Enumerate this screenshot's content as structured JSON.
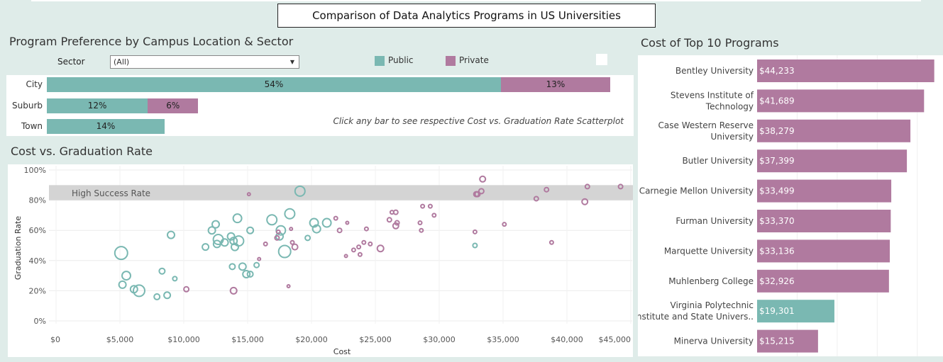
{
  "dashboard_title": "Comparison of Data Analytics Programs in US Universities",
  "preference": {
    "title": "Program Preference by Campus Location & Sector",
    "sector_label": "Sector",
    "sector_value": "(All)",
    "legend_public": "Public",
    "legend_private": "Private",
    "note": "Click any bar to see respective Cost vs. Graduation Rate Scatterplot"
  },
  "scatter": {
    "title": "Cost vs. Graduation Rate",
    "band_label": "High Success Rate"
  },
  "cost_top": {
    "title": "Cost of Top 10 Programs"
  },
  "colors": {
    "public": "#7ab8b2",
    "private": "#b07a9f",
    "band": "#d4d4d4",
    "background": "#dfece9"
  },
  "chart_data": [
    {
      "type": "bar",
      "orientation": "horizontal",
      "stacked": true,
      "categories": [
        "City",
        "Suburb",
        "Town"
      ],
      "series": [
        {
          "name": "Public",
          "values": [
            54,
            12,
            14
          ],
          "labels": [
            "54%",
            "12%",
            "14%"
          ]
        },
        {
          "name": "Private",
          "values": [
            13,
            6,
            0
          ],
          "labels": [
            "13%",
            "6%",
            ""
          ]
        }
      ],
      "unit": "%"
    },
    {
      "type": "scatter",
      "title": "Cost vs. Graduation Rate",
      "xlabel": "Cost",
      "ylabel": "Graduation Rate",
      "xlim": [
        0,
        45000
      ],
      "ylim": [
        0,
        100
      ],
      "x_ticks": [
        "$0",
        "$5,000",
        "$10,000",
        "$15,000",
        "$20,000",
        "$25,000",
        "$30,000",
        "$35,000",
        "$40,000",
        "$45,000"
      ],
      "y_ticks": [
        "0%",
        "20%",
        "40%",
        "60%",
        "80%",
        "100%"
      ],
      "reference_band": {
        "from": 80,
        "to": 90,
        "label": "High Success Rate"
      },
      "series": [
        {
          "name": "Public",
          "points": [
            [
              5100,
              45,
              9
            ],
            [
              5200,
              24,
              5
            ],
            [
              5500,
              30,
              6
            ],
            [
              6100,
              21,
              5
            ],
            [
              6500,
              20,
              8
            ],
            [
              7900,
              16,
              4
            ],
            [
              8300,
              33,
              4
            ],
            [
              8700,
              17,
              4.5
            ],
            [
              9000,
              57,
              5
            ],
            [
              9300,
              28,
              3
            ],
            [
              11700,
              49,
              4.5
            ],
            [
              12200,
              60,
              5
            ],
            [
              12500,
              64,
              5
            ],
            [
              12600,
              51,
              5
            ],
            [
              12700,
              54,
              7
            ],
            [
              13200,
              52,
              5
            ],
            [
              13700,
              56,
              5
            ],
            [
              13800,
              36,
              4
            ],
            [
              13900,
              53,
              5
            ],
            [
              14000,
              49,
              5
            ],
            [
              14200,
              68,
              6
            ],
            [
              14300,
              53,
              7
            ],
            [
              14600,
              36,
              5
            ],
            [
              14900,
              31,
              5
            ],
            [
              15200,
              60,
              4.5
            ],
            [
              15200,
              31,
              4
            ],
            [
              15700,
              37,
              3.5
            ],
            [
              16900,
              67,
              7
            ],
            [
              17500,
              56,
              5
            ],
            [
              17600,
              60,
              6.5
            ],
            [
              17900,
              46,
              8.5
            ],
            [
              18300,
              71,
              7
            ],
            [
              19100,
              86,
              7
            ],
            [
              19700,
              55,
              3.5
            ],
            [
              20200,
              65,
              6
            ],
            [
              20400,
              61,
              5.5
            ],
            [
              21200,
              65,
              6
            ],
            [
              32800,
              50,
              3
            ]
          ]
        },
        {
          "name": "Private",
          "points": [
            [
              10200,
              21,
              3.5
            ],
            [
              13900,
              20,
              4.5
            ],
            [
              15100,
              84,
              2
            ],
            [
              15900,
              41,
              2
            ],
            [
              16400,
              51,
              2.5
            ],
            [
              17300,
              55,
              3
            ],
            [
              17400,
              59,
              2.5
            ],
            [
              18200,
              23,
              2
            ],
            [
              18400,
              61,
              2
            ],
            [
              18500,
              52,
              2.5
            ],
            [
              18700,
              49,
              4
            ],
            [
              21900,
              68,
              2.5
            ],
            [
              22200,
              60,
              3
            ],
            [
              22700,
              43,
              2
            ],
            [
              22800,
              65,
              2
            ],
            [
              23300,
              47,
              2.5
            ],
            [
              23700,
              49,
              2.5
            ],
            [
              23800,
              44,
              2.5
            ],
            [
              24100,
              52,
              2.5
            ],
            [
              24300,
              61,
              2.5
            ],
            [
              24600,
              51,
              2.5
            ],
            [
              25400,
              48,
              4.5
            ],
            [
              26100,
              67,
              3
            ],
            [
              26300,
              72,
              2.5
            ],
            [
              26600,
              63,
              4
            ],
            [
              26600,
              72,
              3
            ],
            [
              26700,
              65,
              3
            ],
            [
              28500,
              65,
              2.5
            ],
            [
              28600,
              60,
              2.5
            ],
            [
              28700,
              76,
              2.5
            ],
            [
              29300,
              76,
              2.5
            ],
            [
              29600,
              70,
              2.5
            ],
            [
              32800,
              59,
              2.5
            ],
            [
              32900,
              84,
              3.5
            ],
            [
              33000,
              84,
              3.5
            ],
            [
              33300,
              86,
              3.5
            ],
            [
              33400,
              94,
              4
            ],
            [
              35100,
              64,
              2.5
            ],
            [
              37600,
              81,
              3
            ],
            [
              38400,
              87,
              3
            ],
            [
              38800,
              52,
              2.5
            ],
            [
              41400,
              79,
              4
            ],
            [
              41600,
              89,
              3
            ],
            [
              44200,
              89,
              3
            ]
          ]
        }
      ]
    },
    {
      "type": "bar",
      "orientation": "horizontal",
      "title": "Cost of Top 10 Programs",
      "categories": [
        "Bentley University",
        "Stevens Institute of Technology",
        "Case Western Reserve University",
        "Butler University",
        "Carnegie Mellon University",
        "Furman University",
        "Marquette University",
        "Muhlenberg College",
        "Virginia Polytechnic Institute and State Univers..",
        "Minerva University"
      ],
      "category_lines": [
        [
          "Bentley University"
        ],
        [
          "Stevens Institute of",
          "Technology"
        ],
        [
          "Case Western Reserve",
          "University"
        ],
        [
          "Butler University"
        ],
        [
          "Carnegie Mellon University"
        ],
        [
          "Furman University"
        ],
        [
          "Marquette University"
        ],
        [
          "Muhlenberg College"
        ],
        [
          "Virginia Polytechnic",
          "Institute and State Univers.."
        ],
        [
          "Minerva University"
        ]
      ],
      "values": [
        44233,
        41689,
        38279,
        37399,
        33499,
        33370,
        33136,
        32926,
        19301,
        15215
      ],
      "value_labels": [
        "$44,233",
        "$41,689",
        "$38,279",
        "$37,399",
        "$33,499",
        "$33,370",
        "$33,136",
        "$32,926",
        "$19,301",
        "$15,215"
      ],
      "sector": [
        "Private",
        "Private",
        "Private",
        "Private",
        "Private",
        "Private",
        "Private",
        "Private",
        "Public",
        "Private"
      ]
    }
  ]
}
